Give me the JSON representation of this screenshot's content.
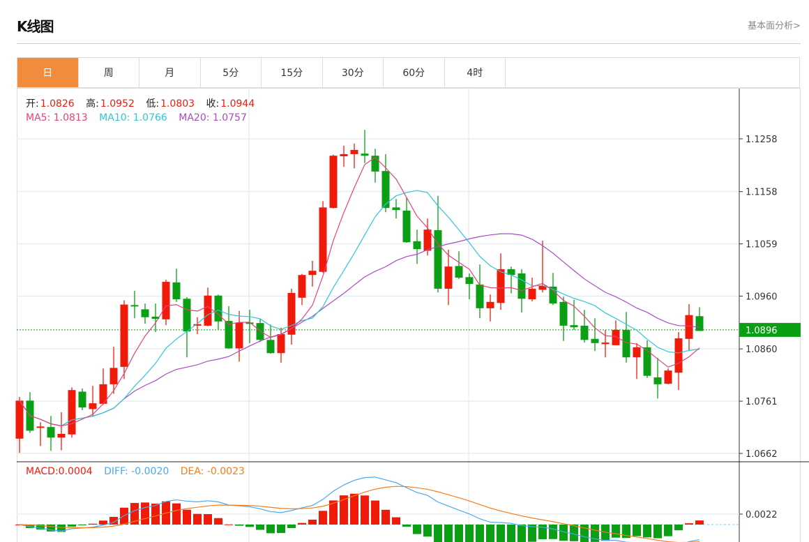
{
  "header": {
    "title": "K线图",
    "link": "基本面分析>"
  },
  "tabs": [
    {
      "label": "日",
      "active": true
    },
    {
      "label": "周"
    },
    {
      "label": "月"
    },
    {
      "label": "5分"
    },
    {
      "label": "15分"
    },
    {
      "label": "30分"
    },
    {
      "label": "60分"
    },
    {
      "label": "4时"
    }
  ],
  "ohlc_legend": {
    "open_label": "开:",
    "open": "1.0826",
    "high_label": "高:",
    "high": "1.0952",
    "low_label": "低:",
    "low": "1.0803",
    "close_label": "收:",
    "close": "1.0944"
  },
  "ma_legend": {
    "ma5": "MA5: 1.0813",
    "ma10": "MA10: 1.0766",
    "ma20": "MA20: 1.0757"
  },
  "macd_legend": {
    "macd": "MACD:0.0004",
    "diff": "DIFF: -0.0020",
    "dea": "DEA: -0.0023"
  },
  "colors": {
    "up": "#f01a0a",
    "down": "#0a9f14",
    "ma5": "#e8407a",
    "ma10": "#2ec6d8",
    "ma20": "#a94cc4",
    "diff": "#4aa8ee",
    "dea": "#f57c1a",
    "accent": "#f28c3c"
  },
  "chart_data": {
    "type": "candlestick",
    "y_ticks": [
      "1.1258",
      "1.1158",
      "1.1059",
      "1.0960",
      "1.0860",
      "1.0761",
      "1.0662"
    ],
    "ylim": [
      1.0662,
      1.1258
    ],
    "last_price": "1.0896",
    "macd_tick": "0.0022",
    "candles": [
      [
        1.069,
        1.0769,
        1.0663,
        1.0762
      ],
      [
        1.0762,
        1.0778,
        1.0701,
        1.0705
      ],
      [
        1.0712,
        1.0721,
        1.0676,
        1.0713
      ],
      [
        1.0712,
        1.0733,
        1.0667,
        1.0692
      ],
      [
        1.0692,
        1.074,
        1.0668,
        1.0699
      ],
      [
        1.0698,
        1.0787,
        1.0692,
        1.0782
      ],
      [
        1.0779,
        1.0785,
        1.0744,
        1.0749
      ],
      [
        1.0746,
        1.079,
        1.0733,
        1.0757
      ],
      [
        1.0756,
        1.0823,
        1.0754,
        1.0793
      ],
      [
        1.0793,
        1.0864,
        1.0775,
        1.0824
      ],
      [
        1.0826,
        1.0952,
        1.0803,
        1.0944
      ],
      [
        1.0943,
        1.097,
        1.0918,
        1.0941
      ],
      [
        1.0935,
        1.0946,
        1.0908,
        1.092
      ],
      [
        1.0921,
        1.0946,
        1.0892,
        1.0917
      ],
      [
        1.0916,
        1.0991,
        1.0905,
        1.0987
      ],
      [
        1.0986,
        1.1012,
        1.0949,
        1.0954
      ],
      [
        1.0955,
        1.0958,
        1.0844,
        1.0893
      ],
      [
        1.0904,
        1.092,
        1.0888,
        1.0907
      ],
      [
        1.0904,
        1.0976,
        1.0903,
        1.0961
      ],
      [
        1.0961,
        1.0963,
        1.0897,
        1.0912
      ],
      [
        1.0913,
        1.0941,
        1.086,
        1.0861
      ],
      [
        1.0861,
        1.0932,
        1.0836,
        1.091
      ],
      [
        1.091,
        1.0934,
        1.0871,
        1.0909
      ],
      [
        1.0909,
        1.0917,
        1.0873,
        1.0877
      ],
      [
        1.0877,
        1.0906,
        1.0851,
        1.0852
      ],
      [
        1.0852,
        1.09,
        1.0834,
        1.0888
      ],
      [
        1.0887,
        1.0974,
        1.0868,
        1.0966
      ],
      [
        1.0957,
        1.1002,
        1.0943,
        1.1
      ],
      [
        1.1,
        1.1027,
        1.0978,
        1.1008
      ],
      [
        1.1006,
        1.114,
        1.1004,
        1.1128
      ],
      [
        1.1127,
        1.1228,
        1.1126,
        1.1226
      ],
      [
        1.1225,
        1.1245,
        1.1205,
        1.1229
      ],
      [
        1.1229,
        1.1249,
        1.1202,
        1.1237
      ],
      [
        1.123,
        1.1275,
        1.1212,
        1.1226
      ],
      [
        1.1226,
        1.1239,
        1.1175,
        1.1196
      ],
      [
        1.1197,
        1.1229,
        1.1119,
        1.1127
      ],
      [
        1.1128,
        1.1144,
        1.1107,
        1.1123
      ],
      [
        1.1122,
        1.1147,
        1.1061,
        1.1062
      ],
      [
        1.1064,
        1.1086,
        1.1021,
        1.1049
      ],
      [
        1.1046,
        1.1107,
        1.1037,
        1.1086
      ],
      [
        1.1085,
        1.115,
        1.0967,
        1.0974
      ],
      [
        1.0974,
        1.1048,
        1.0943,
        1.1016
      ],
      [
        1.1017,
        1.1045,
        1.0992,
        1.0995
      ],
      [
        1.0996,
        1.1003,
        1.0954,
        1.0983
      ],
      [
        1.0982,
        1.102,
        1.0918,
        1.0937
      ],
      [
        1.0937,
        1.0963,
        1.0912,
        1.0949
      ],
      [
        1.0947,
        1.1041,
        1.0934,
        1.1011
      ],
      [
        1.1011,
        1.1016,
        1.0965,
        1.1
      ],
      [
        1.1003,
        1.1011,
        1.0929,
        1.0955
      ],
      [
        1.0954,
        1.0995,
        1.095,
        1.0974
      ],
      [
        1.0972,
        1.1065,
        1.0967,
        1.098
      ],
      [
        1.0978,
        1.1004,
        1.0943,
        1.0946
      ],
      [
        1.0949,
        1.0959,
        1.0875,
        1.0904
      ],
      [
        1.0905,
        1.0953,
        1.0896,
        1.0901
      ],
      [
        1.0904,
        1.0934,
        1.0872,
        1.0877
      ],
      [
        1.0879,
        1.0918,
        1.0856,
        1.0871
      ],
      [
        1.0869,
        1.0896,
        1.0844,
        1.0872
      ],
      [
        1.0867,
        1.0914,
        1.0867,
        1.0896
      ],
      [
        1.0896,
        1.093,
        1.0834,
        1.0844
      ],
      [
        1.0844,
        1.0871,
        1.0803,
        1.0863
      ],
      [
        1.0863,
        1.0876,
        1.0805,
        1.0809
      ],
      [
        1.0806,
        1.0843,
        1.0766,
        1.0793
      ],
      [
        1.0794,
        1.0823,
        1.0793,
        1.0819
      ],
      [
        1.0815,
        1.0892,
        1.0782,
        1.088
      ],
      [
        1.0879,
        1.0945,
        1.0856,
        1.0924
      ],
      [
        1.0922,
        1.0939,
        1.0894,
        1.0894
      ]
    ]
  }
}
